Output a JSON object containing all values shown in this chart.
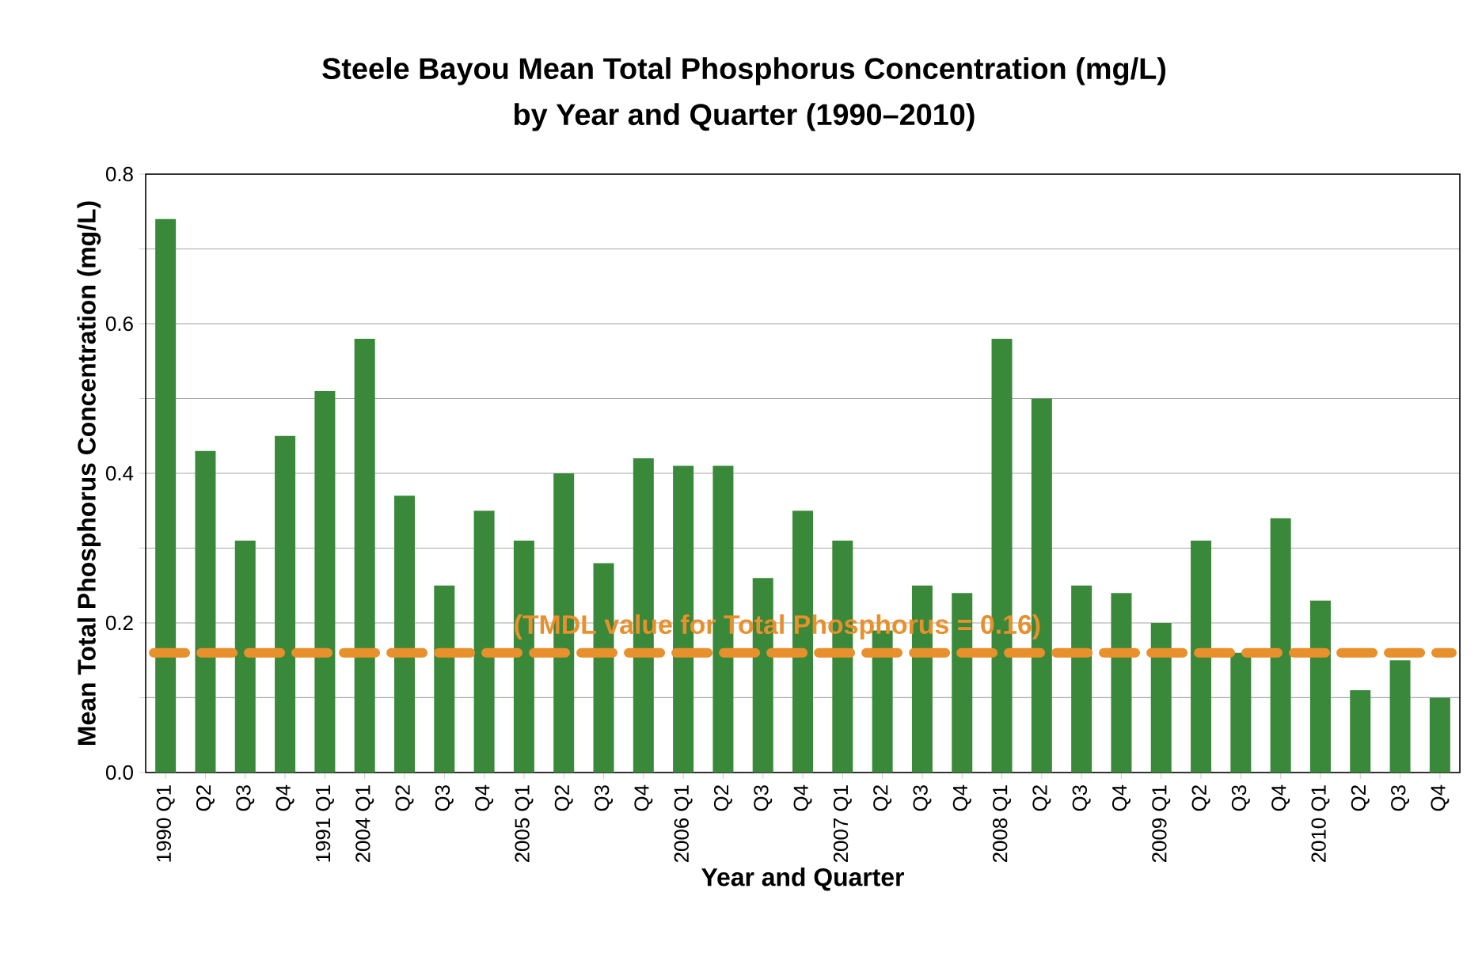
{
  "chart_data": {
    "type": "bar",
    "title": "Steele Bayou Mean Total Phosphorus Concentration (mg/L)",
    "subtitle": "by Year and Quarter (1990–2010)",
    "xlabel": "Year and Quarter",
    "ylabel": "Mean Total Phosphorus Concentration (mg/L)",
    "categories": [
      "1990 Q1",
      "Q2",
      "Q3",
      "Q4",
      "1991 Q1",
      "2004 Q1",
      "Q2",
      "Q3",
      "Q4",
      "2005 Q1",
      "Q2",
      "Q3",
      "Q4",
      "2006 Q1",
      "Q2",
      "Q3",
      "Q4",
      "2007 Q1",
      "Q2",
      "Q3",
      "Q4",
      "2008 Q1",
      "Q2",
      "Q3",
      "Q4",
      "2009 Q1",
      "Q2",
      "Q3",
      "Q4",
      "2010 Q1",
      "Q2",
      "Q3",
      "Q4"
    ],
    "values": [
      0.74,
      0.43,
      0.31,
      0.45,
      0.51,
      0.58,
      0.37,
      0.25,
      0.35,
      0.31,
      0.4,
      0.28,
      0.42,
      0.41,
      0.41,
      0.26,
      0.35,
      0.31,
      0.19,
      0.25,
      0.24,
      0.58,
      0.5,
      0.25,
      0.24,
      0.2,
      0.31,
      0.16,
      0.34,
      0.23,
      0.11,
      0.15,
      0.1
    ],
    "color": "#3a883a",
    "ylim": [
      0,
      0.8
    ],
    "yticks": [
      {
        "value": 0,
        "label": "0.0"
      },
      {
        "value": 0.1,
        "label": null
      },
      {
        "value": 0.2,
        "label": "0.2"
      },
      {
        "value": 0.3,
        "label": null
      },
      {
        "value": 0.4,
        "label": "0.4"
      },
      {
        "value": 0.5,
        "label": null
      },
      {
        "value": 0.6,
        "label": "0.6"
      },
      {
        "value": 0.7,
        "label": null
      },
      {
        "value": 0.8,
        "label": "0.8"
      }
    ],
    "grid": "y",
    "ref_lines": [
      {
        "axis": "y",
        "value": 0.16,
        "label": "(TMDL value for Total Phosphorus = 0.16)",
        "color": "#e8902c",
        "line_style": "dashed"
      }
    ]
  }
}
